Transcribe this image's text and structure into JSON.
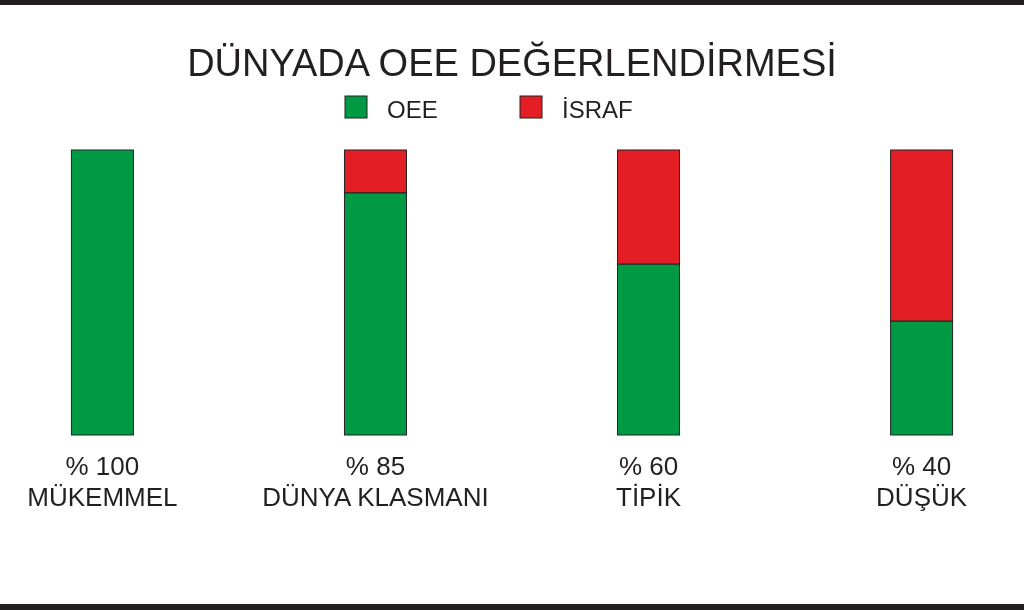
{
  "chart_data": {
    "type": "bar",
    "title": "DÜNYADA OEE DEĞERLENDİRMESİ",
    "categories": [
      "MÜKEMMEL",
      "DÜNYA KLASMANI",
      "TİPİK",
      "DÜŞÜK"
    ],
    "stacked": true,
    "legend": "top",
    "series": [
      {
        "name": "OEE",
        "color": "#009a44",
        "values": [
          100,
          85,
          60,
          40
        ],
        "value_labels": [
          "% 100",
          "% 85",
          "% 60",
          "% 40"
        ]
      },
      {
        "name": "İSRAF",
        "color": "#e31e24",
        "values": [
          0,
          15,
          40,
          60
        ]
      }
    ]
  }
}
